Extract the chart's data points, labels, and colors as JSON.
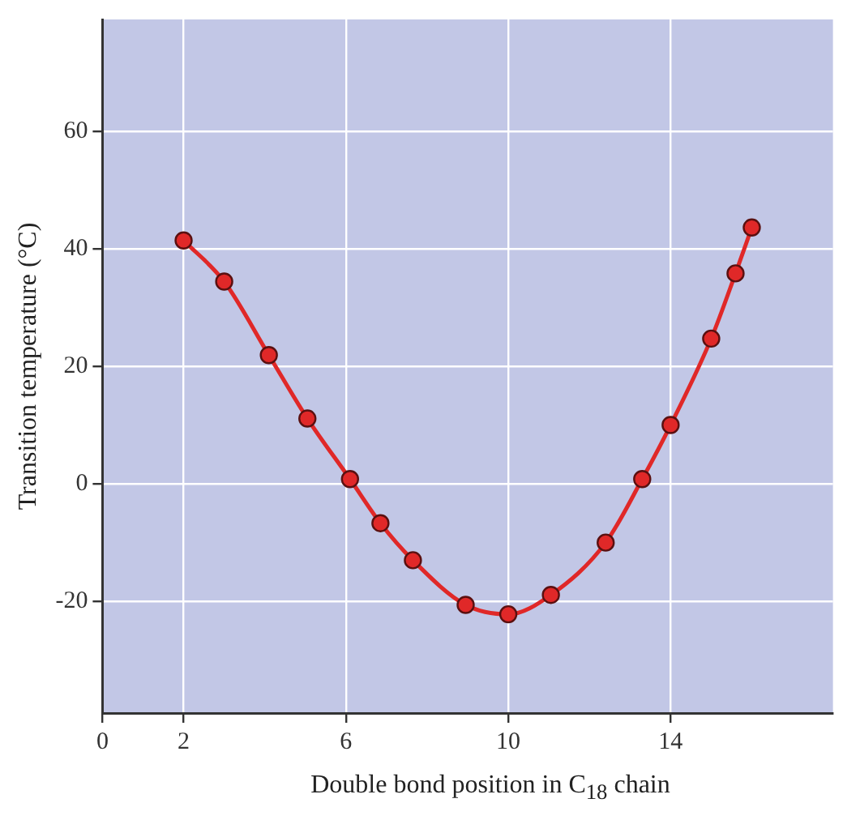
{
  "chart_data": {
    "type": "line",
    "xlabel": "Double bond position in C$_{18}$ chain",
    "ylabel": "Transition temperature (°C)",
    "x": [
      2,
      3,
      4.1,
      5.05,
      6.1,
      6.85,
      7.65,
      8.95,
      10,
      11.05,
      12.4,
      13.3,
      14,
      15,
      15.6,
      16
    ],
    "series": [
      {
        "color": "#e02828",
        "values": [
          41.4,
          34.4,
          21.9,
          11.1,
          0.8,
          -6.7,
          -13,
          -20.6,
          -22.2,
          -18.9,
          -10,
          0.8,
          10,
          24.7,
          35.8,
          43.6
        ]
      }
    ],
    "xlim": [
      0,
      18
    ],
    "xticks": [
      0,
      2,
      6,
      10,
      14
    ],
    "ylim": [
      -39,
      79
    ],
    "yticks": [
      -20,
      0,
      20,
      40,
      60
    ],
    "grid": true,
    "marker": "circle",
    "line_style": "solid",
    "legend": false
  }
}
